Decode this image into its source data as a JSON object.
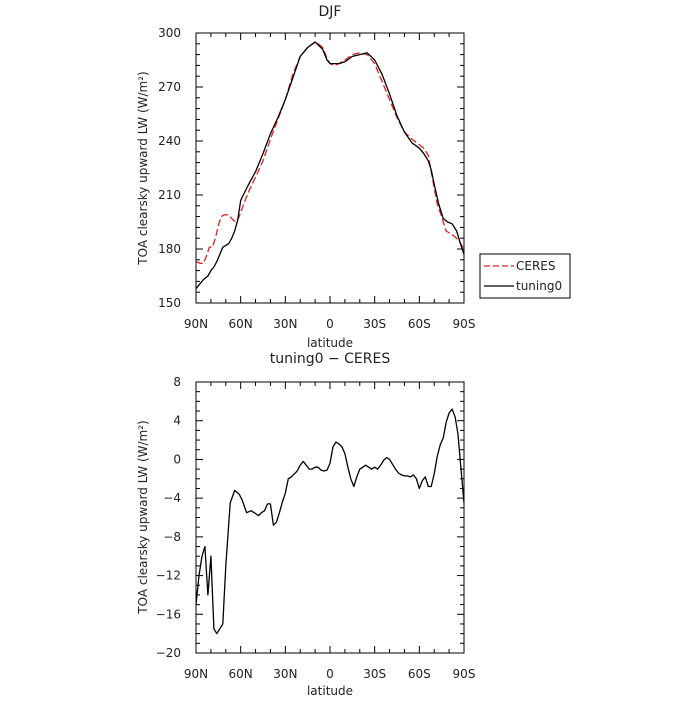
{
  "chart_data": [
    {
      "type": "line",
      "title": "DJF",
      "xlabel": "latitude",
      "ylabel": "TOA clearsky upward LW (W/m²)",
      "xlim": [
        -90,
        90
      ],
      "ylim": [
        150,
        300
      ],
      "x_ticks": [
        -90,
        -60,
        -30,
        0,
        30,
        60,
        90
      ],
      "x_tick_labels": [
        "90N",
        "60N",
        "30N",
        "0",
        "30S",
        "60S",
        "90S"
      ],
      "y_ticks": [
        150,
        180,
        210,
        240,
        270,
        300
      ],
      "y_tick_labels": [
        "150",
        "180",
        "210",
        "240",
        "270",
        "300"
      ],
      "legend": "right",
      "series": [
        {
          "name": "CERES",
          "color": "#e02020",
          "dash": "dashed",
          "x": [
            -90,
            -87,
            -85,
            -83,
            -81,
            -79,
            -77,
            -75,
            -73,
            -71,
            -69,
            -67,
            -65,
            -63,
            -61,
            -57,
            -54,
            -50,
            -45,
            -40,
            -35,
            -30,
            -25,
            -20,
            -15,
            -10,
            -8,
            -5,
            -2,
            0,
            3,
            6,
            10,
            15,
            20,
            25,
            30,
            35,
            40,
            45,
            50,
            55,
            60,
            63,
            66,
            68,
            72,
            75,
            78,
            82,
            85,
            87,
            90
          ],
          "y": [
            173,
            172,
            172,
            176,
            181,
            181,
            186,
            193,
            198,
            199,
            199,
            198,
            196,
            195,
            198,
            207,
            213,
            220,
            229,
            241,
            252,
            263,
            277,
            287,
            292,
            295,
            294,
            292,
            286,
            283,
            282,
            283,
            285,
            288,
            289,
            288,
            283,
            273,
            263,
            253,
            245,
            241,
            238,
            236,
            232,
            223,
            205,
            198,
            190,
            188,
            186,
            184,
            180
          ]
        },
        {
          "name": "tuning0",
          "color": "#000000",
          "dash": "solid",
          "x": [
            -90,
            -87,
            -85,
            -82,
            -80,
            -78,
            -76,
            -74,
            -72,
            -70,
            -68,
            -66,
            -64,
            -62,
            -60,
            -57,
            -54,
            -50,
            -45,
            -40,
            -35,
            -30,
            -25,
            -20,
            -15,
            -10,
            -5,
            -2,
            0,
            3,
            6,
            10,
            15,
            20,
            25,
            30,
            35,
            40,
            45,
            50,
            55,
            60,
            63,
            66,
            68,
            70,
            73,
            76,
            79,
            82,
            85,
            88,
            90
          ],
          "y": [
            158,
            161,
            163,
            165,
            168,
            170,
            173,
            177,
            181,
            182,
            183,
            186,
            190,
            196,
            207,
            212,
            217,
            223,
            233,
            244,
            253,
            263,
            275,
            287,
            292,
            295,
            291,
            285,
            283,
            283,
            283,
            284,
            287,
            288,
            289,
            285,
            277,
            266,
            254,
            245,
            239,
            236,
            233,
            229,
            224,
            216,
            205,
            197,
            195,
            194,
            190,
            182,
            177
          ]
        }
      ]
    },
    {
      "type": "line",
      "title": "tuning0 − CERES",
      "xlabel": "latitude",
      "ylabel": "TOA clearsky upward LW (W/m²)",
      "xlim": [
        -90,
        90
      ],
      "ylim": [
        -20,
        8
      ],
      "x_ticks": [
        -90,
        -60,
        -30,
        0,
        30,
        60,
        90
      ],
      "x_tick_labels": [
        "90N",
        "60N",
        "30N",
        "0",
        "30S",
        "60S",
        "90S"
      ],
      "y_ticks": [
        -20,
        -16,
        -12,
        -8,
        -4,
        0,
        4,
        8
      ],
      "y_tick_labels": [
        "−20",
        "−16",
        "−12",
        "−8",
        "−4",
        "0",
        "4",
        "8"
      ],
      "series": [
        {
          "color": "#000000",
          "dash": "solid",
          "x": [
            -90,
            -88,
            -86,
            -84,
            -82,
            -80,
            -78,
            -76,
            -74,
            -72,
            -70,
            -67,
            -64,
            -61,
            -59,
            -56,
            -53,
            -50,
            -48,
            -46,
            -44,
            -42,
            -40,
            -38,
            -36,
            -34,
            -32,
            -30,
            -28,
            -26,
            -24,
            -22,
            -20,
            -18,
            -16,
            -14,
            -12,
            -10,
            -8,
            -6,
            -4,
            -2,
            0,
            2,
            4,
            6,
            8,
            10,
            12,
            14,
            16,
            18,
            20,
            22,
            24,
            26,
            28,
            30,
            32,
            34,
            36,
            38,
            40,
            42,
            44,
            46,
            48,
            50,
            52,
            54,
            56,
            58,
            60,
            62,
            64,
            66,
            68,
            70,
            72,
            74,
            76,
            78,
            80,
            82,
            84,
            86,
            88,
            90
          ],
          "y": [
            -15,
            -12,
            -10,
            -9,
            -14,
            -10,
            -17.5,
            -18,
            -17.5,
            -17,
            -11,
            -4.5,
            -3.2,
            -3.6,
            -4.2,
            -5.5,
            -5.3,
            -5.6,
            -5.8,
            -5.5,
            -5.3,
            -4.6,
            -4.6,
            -6.8,
            -6.5,
            -5.5,
            -4.4,
            -3.5,
            -2,
            -1.8,
            -1.5,
            -1.2,
            -0.6,
            -0.2,
            -0.6,
            -1,
            -1,
            -0.8,
            -0.8,
            -1.1,
            -1.2,
            -1.1,
            -0.4,
            1.3,
            1.8,
            1.6,
            1.3,
            0.6,
            -0.8,
            -2,
            -2.8,
            -1.8,
            -1,
            -0.8,
            -0.6,
            -0.8,
            -1,
            -0.8,
            -1,
            -0.6,
            -0.1,
            0.2,
            0,
            -0.5,
            -1,
            -1.4,
            -1.6,
            -1.7,
            -1.7,
            -1.8,
            -1.6,
            -2,
            -3,
            -2.2,
            -1.8,
            -2.8,
            -2.8,
            -1.5,
            0.3,
            1.5,
            2.2,
            3.8,
            4.8,
            5.2,
            4.4,
            2.6,
            -1,
            -4.5
          ]
        }
      ]
    }
  ]
}
